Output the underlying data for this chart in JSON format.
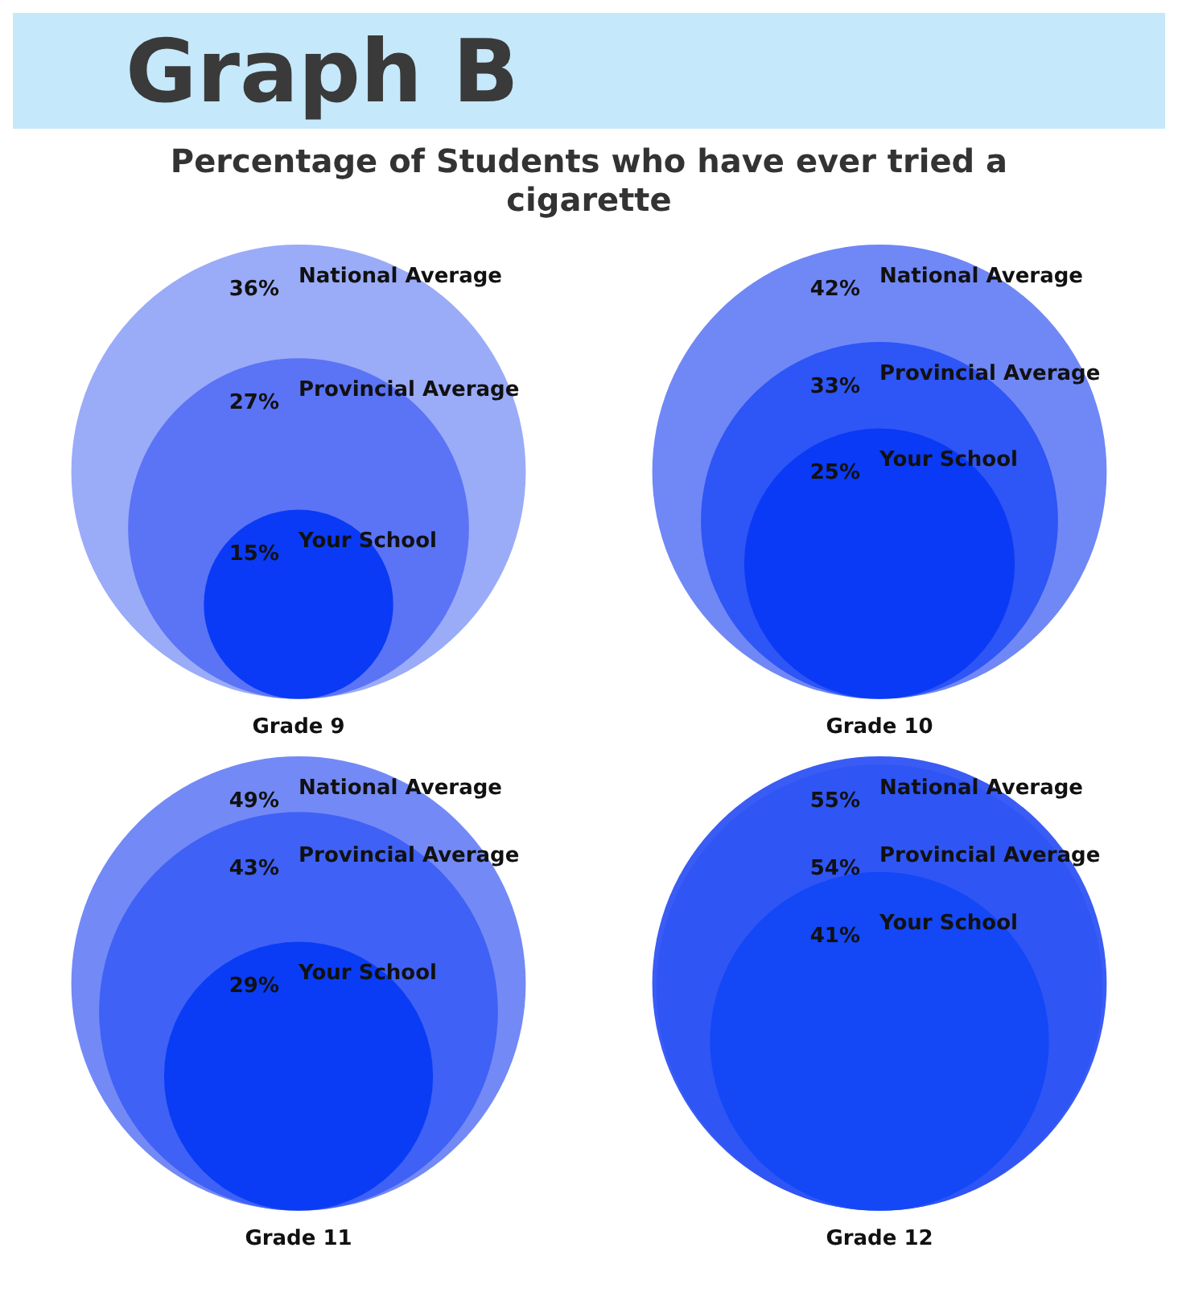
{
  "chart_data": [
    {
      "type": "other",
      "title": "Graph B",
      "subtitle": "Percentage of Students who have ever tried a cigarette",
      "xlabel": "Grade 9",
      "categories": [
        "National Average",
        "Provincial Average",
        "Your School"
      ],
      "values": [
        36,
        27,
        15
      ],
      "value_labels": [
        "36%",
        "27%",
        "15%"
      ],
      "colors": [
        "#9aabf8",
        "#5b73f5",
        "#0a3af5"
      ]
    },
    {
      "type": "other",
      "xlabel": "Grade 10",
      "categories": [
        "National Average",
        "Provincial Average",
        "Your School"
      ],
      "values": [
        42,
        33,
        25
      ],
      "value_labels": [
        "42%",
        "33%",
        "25%"
      ],
      "colors": [
        "#7087f6",
        "#2e55f5",
        "#0a3af5"
      ]
    },
    {
      "type": "other",
      "xlabel": "Grade 11",
      "categories": [
        "National Average",
        "Provincial Average",
        "Your School"
      ],
      "values": [
        49,
        43,
        29
      ],
      "value_labels": [
        "49%",
        "43%",
        "29%"
      ],
      "colors": [
        "#7389f6",
        "#3f61f5",
        "#0a3cf5"
      ]
    },
    {
      "type": "other",
      "xlabel": "Grade 12",
      "categories": [
        "National Average",
        "Provincial Average",
        "Your School"
      ],
      "values": [
        55,
        54,
        41
      ],
      "value_labels": [
        "55%",
        "54%",
        "41%"
      ],
      "colors": [
        "#3a5cf5",
        "#2f55f5",
        "#1447f5"
      ]
    }
  ]
}
